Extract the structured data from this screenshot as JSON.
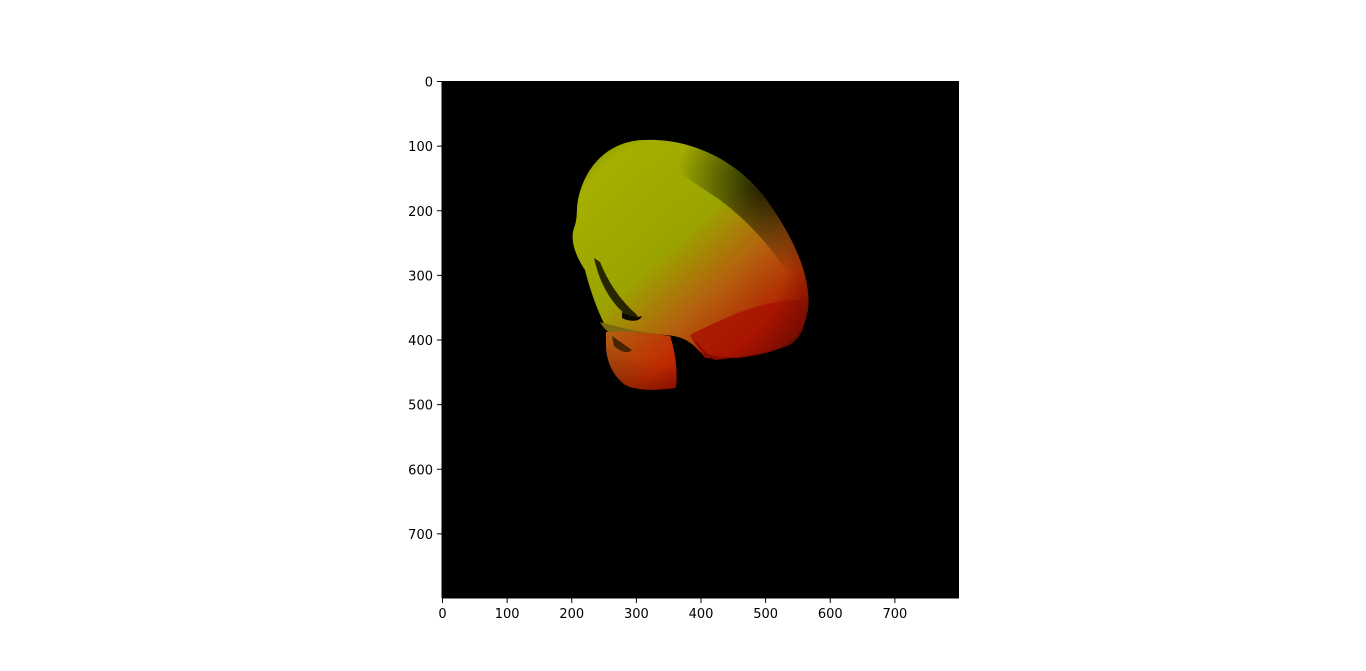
{
  "figure": {
    "background": "#ffffff",
    "image": {
      "description_icon": "rendered-skull-icon",
      "background_color": "#000000",
      "colors": {
        "top_yellow": "#a3b000",
        "mid_orange": "#c06a10",
        "bottom_red": "#b01000"
      }
    },
    "axes": {
      "x_range": [
        0,
        800
      ],
      "y_range": [
        0,
        800
      ],
      "y_inverted": true,
      "x_ticks": [
        0,
        100,
        200,
        300,
        400,
        500,
        600,
        700
      ],
      "y_ticks": [
        0,
        100,
        200,
        300,
        400,
        500,
        600,
        700
      ],
      "x_tick_labels": [
        "0",
        "100",
        "200",
        "300",
        "400",
        "500",
        "600",
        "700"
      ],
      "y_tick_labels": [
        "0",
        "100",
        "200",
        "300",
        "400",
        "500",
        "600",
        "700"
      ]
    }
  }
}
